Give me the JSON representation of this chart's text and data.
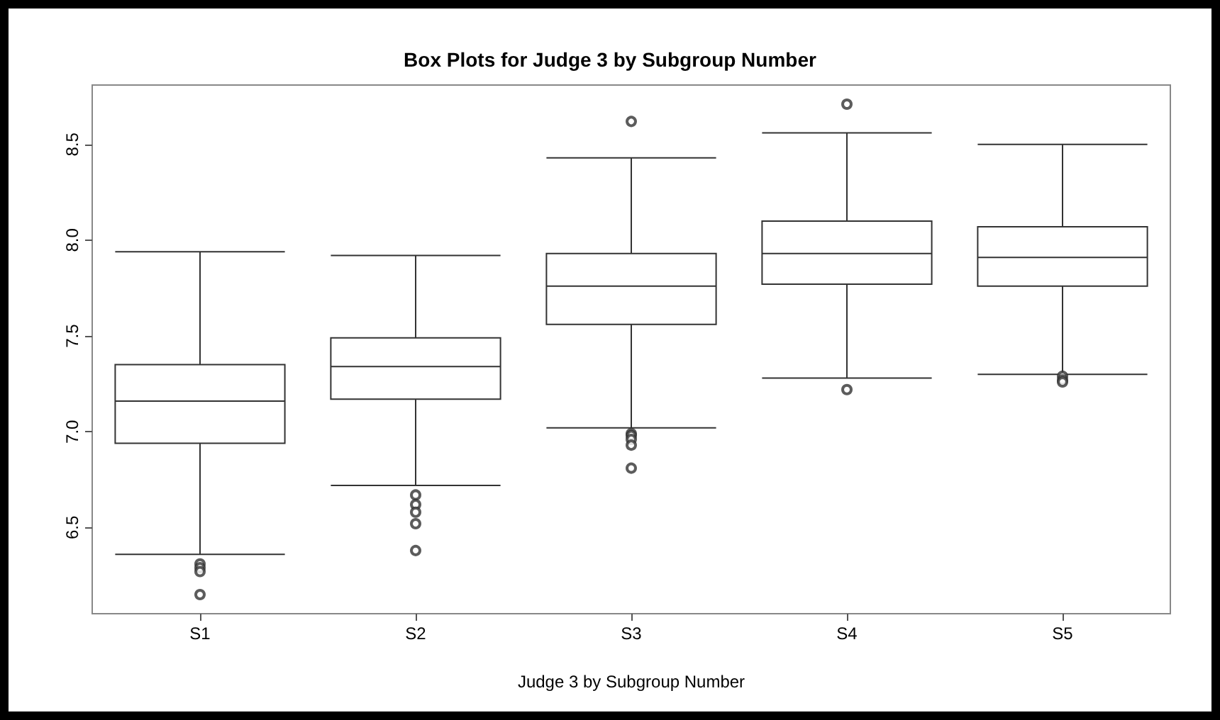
{
  "chart_data": {
    "type": "box",
    "title": "Box Plots for Judge 3 by Subgroup Number",
    "xlabel": "Judge 3 by Subgroup Number",
    "categories": [
      "S1",
      "S2",
      "S3",
      "S4",
      "S5"
    ],
    "ylim": [
      6.05,
      8.81
    ],
    "yticks": [
      6.5,
      {
        "value": 7,
        "label": "7.0"
      },
      7.5,
      {
        "value": 8,
        "label": "8.0"
      },
      8.5
    ],
    "grid": false,
    "series": [
      {
        "color": "#333333",
        "boxes": [
          {
            "low": 6.36,
            "q1": 6.94,
            "median": 7.16,
            "q3": 7.35,
            "high": 7.94,
            "outliers": [
              6.31,
              6.29,
              6.27,
              6.15
            ]
          },
          {
            "low": 6.72,
            "q1": 7.17,
            "median": 7.34,
            "q3": 7.49,
            "high": 7.92,
            "outliers": [
              6.67,
              6.62,
              6.58,
              6.52,
              6.38
            ]
          },
          {
            "low": 7.02,
            "q1": 7.56,
            "median": 7.76,
            "q3": 7.93,
            "high": 8.43,
            "outliers": [
              8.62,
              6.99,
              6.98,
              6.96,
              6.93,
              6.81
            ]
          },
          {
            "low": 7.28,
            "q1": 7.77,
            "median": 7.93,
            "q3": 8.1,
            "high": 8.56,
            "outliers": [
              8.71,
              7.22
            ]
          },
          {
            "low": 7.3,
            "q1": 7.76,
            "median": 7.91,
            "q3": 8.07,
            "high": 8.5,
            "outliers": [
              7.29,
              7.27,
              7.26
            ]
          }
        ]
      }
    ]
  }
}
